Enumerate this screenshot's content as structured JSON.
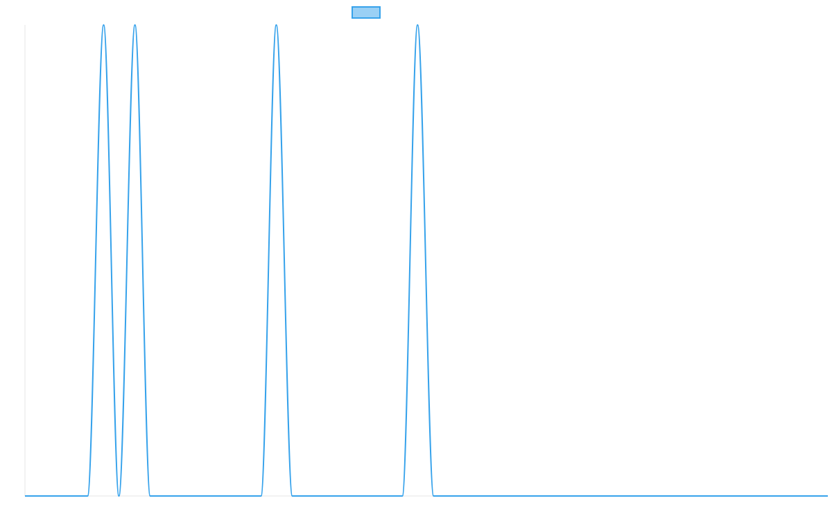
{
  "chart_data": {
    "type": "line",
    "title": "",
    "xlabel": "",
    "ylabel": "",
    "legend": {
      "position": "top-center",
      "show": true
    },
    "grid": false,
    "x_range": [
      0,
      1000
    ],
    "y_range": [
      0,
      1
    ],
    "series": [
      {
        "color": "#36a2eb",
        "fill": "#9ad0f5",
        "points": [
          {
            "x": 0,
            "y": 0
          },
          {
            "x": 78,
            "y": 0
          },
          {
            "x": 98,
            "y": 1
          },
          {
            "x": 117,
            "y": 0
          },
          {
            "x": 137,
            "y": 1
          },
          {
            "x": 156,
            "y": 0
          },
          {
            "x": 294,
            "y": 0
          },
          {
            "x": 313,
            "y": 1
          },
          {
            "x": 333,
            "y": 0
          },
          {
            "x": 470,
            "y": 0
          },
          {
            "x": 489,
            "y": 1
          },
          {
            "x": 509,
            "y": 0
          },
          {
            "x": 1000,
            "y": 0
          }
        ]
      }
    ]
  }
}
